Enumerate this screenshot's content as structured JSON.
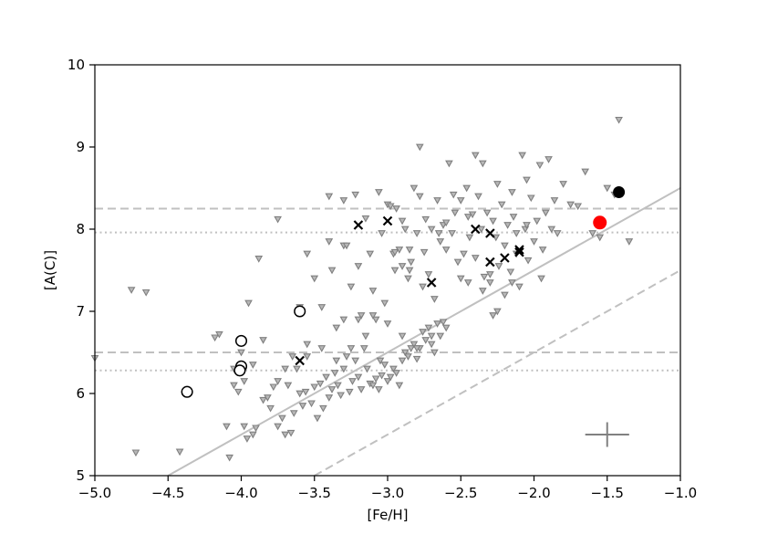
{
  "chart_data": {
    "type": "scatter",
    "xlabel": "[Fe/H]",
    "ylabel": "[A(C)]",
    "xlim": [
      -5.0,
      -1.0
    ],
    "ylim": [
      5,
      10
    ],
    "x_ticks": [
      "−5.0",
      "−4.5",
      "−4.0",
      "−3.5",
      "−3.0",
      "−2.5",
      "−2.0",
      "−1.5",
      "−1.0"
    ],
    "y_ticks": [
      "5",
      "6",
      "7",
      "8",
      "9",
      "10"
    ],
    "x_tick_values": [
      -5.0,
      -4.5,
      -4.0,
      -3.5,
      -3.0,
      -2.5,
      -2.0,
      -1.5,
      -1.0
    ],
    "y_tick_values": [
      5,
      6,
      7,
      8,
      9,
      10
    ],
    "grid": false,
    "colors": {
      "triangles": "#808080",
      "reference_lines": "#c0c0c0",
      "crosses": "#000000",
      "open_circles": "#000000",
      "filled_black": "#000000",
      "filled_red": "#ff0000",
      "error_bar": "#808080"
    },
    "reference_lines": [
      {
        "style": "dashed",
        "orientation": "horizontal",
        "y": 8.25
      },
      {
        "style": "dotted",
        "orientation": "horizontal",
        "y": 7.96
      },
      {
        "style": "dashed",
        "orientation": "horizontal",
        "y": 6.5
      },
      {
        "style": "dotted",
        "orientation": "horizontal",
        "y": 6.28
      },
      {
        "style": "solid",
        "orientation": "sloped",
        "points": [
          [
            -4.5,
            5.0
          ],
          [
            -1.0,
            8.5
          ]
        ]
      },
      {
        "style": "dashed",
        "orientation": "sloped",
        "points": [
          [
            -3.5,
            5.0
          ],
          [
            -1.0,
            7.5
          ]
        ]
      }
    ],
    "error_bar": {
      "x": -1.5,
      "y": 5.5,
      "x_err": 0.15,
      "y_err": 0.15
    },
    "series": [
      {
        "marker": "triangle-down",
        "values": [
          [
            -5.0,
            6.43
          ],
          [
            -4.75,
            7.26
          ],
          [
            -4.72,
            5.28
          ],
          [
            -4.65,
            7.23
          ],
          [
            -4.42,
            5.29
          ],
          [
            -4.38,
            6.02
          ],
          [
            -4.18,
            6.68
          ],
          [
            -4.15,
            6.72
          ],
          [
            -4.1,
            5.6
          ],
          [
            -4.08,
            5.22
          ],
          [
            -4.05,
            6.1
          ],
          [
            -4.02,
            6.02
          ],
          [
            -4.0,
            6.5
          ],
          [
            -3.98,
            5.6
          ],
          [
            -3.96,
            5.45
          ],
          [
            -3.95,
            7.1
          ],
          [
            -3.92,
            5.5
          ],
          [
            -3.9,
            5.58
          ],
          [
            -3.88,
            7.64
          ],
          [
            -3.85,
            5.92
          ],
          [
            -3.82,
            5.95
          ],
          [
            -3.8,
            5.82
          ],
          [
            -3.78,
            6.08
          ],
          [
            -3.75,
            5.6
          ],
          [
            -3.72,
            5.7
          ],
          [
            -3.7,
            5.5
          ],
          [
            -3.68,
            6.1
          ],
          [
            -3.66,
            5.52
          ],
          [
            -3.64,
            5.76
          ],
          [
            -3.62,
            6.3
          ],
          [
            -3.6,
            6.0
          ],
          [
            -3.58,
            5.85
          ],
          [
            -3.56,
            6.02
          ],
          [
            -3.55,
            6.45
          ],
          [
            -3.52,
            5.88
          ],
          [
            -3.5,
            6.08
          ],
          [
            -3.48,
            5.7
          ],
          [
            -3.46,
            6.12
          ],
          [
            -3.44,
            5.82
          ],
          [
            -3.42,
            6.2
          ],
          [
            -3.4,
            5.95
          ],
          [
            -3.38,
            6.05
          ],
          [
            -3.36,
            6.25
          ],
          [
            -3.34,
            6.1
          ],
          [
            -3.32,
            5.98
          ],
          [
            -3.3,
            6.3
          ],
          [
            -3.28,
            6.45
          ],
          [
            -3.26,
            6.02
          ],
          [
            -3.24,
            6.15
          ],
          [
            -3.22,
            6.4
          ],
          [
            -3.2,
            6.2
          ],
          [
            -3.18,
            6.05
          ],
          [
            -3.16,
            6.55
          ],
          [
            -3.14,
            6.3
          ],
          [
            -3.12,
            6.12
          ],
          [
            -3.1,
            6.1
          ],
          [
            -3.08,
            6.18
          ],
          [
            -3.06,
            6.05
          ],
          [
            -3.04,
            6.22
          ],
          [
            -3.02,
            6.35
          ],
          [
            -3.0,
            6.15
          ],
          [
            -2.98,
            6.2
          ],
          [
            -2.96,
            6.3
          ],
          [
            -2.94,
            6.25
          ],
          [
            -2.92,
            6.1
          ],
          [
            -2.9,
            6.4
          ],
          [
            -2.88,
            6.5
          ],
          [
            -2.86,
            6.45
          ],
          [
            -2.84,
            6.55
          ],
          [
            -2.82,
            6.6
          ],
          [
            -2.8,
            6.42
          ],
          [
            -2.78,
            6.55
          ],
          [
            -2.76,
            6.75
          ],
          [
            -2.74,
            6.65
          ],
          [
            -2.72,
            6.8
          ],
          [
            -2.7,
            6.6
          ],
          [
            -2.68,
            6.5
          ],
          [
            -2.66,
            6.85
          ],
          [
            -2.64,
            6.7
          ],
          [
            -2.62,
            6.87
          ],
          [
            -3.75,
            8.12
          ],
          [
            -3.6,
            7.05
          ],
          [
            -3.55,
            7.7
          ],
          [
            -3.5,
            7.4
          ],
          [
            -3.45,
            7.05
          ],
          [
            -3.4,
            7.85
          ],
          [
            -3.38,
            7.5
          ],
          [
            -3.35,
            6.8
          ],
          [
            -3.3,
            7.8
          ],
          [
            -3.28,
            7.8
          ],
          [
            -3.25,
            7.3
          ],
          [
            -3.22,
            8.42
          ],
          [
            -3.2,
            7.55
          ],
          [
            -3.18,
            6.95
          ],
          [
            -3.15,
            8.13
          ],
          [
            -3.12,
            7.7
          ],
          [
            -3.1,
            7.25
          ],
          [
            -3.08,
            6.9
          ],
          [
            -3.06,
            8.45
          ],
          [
            -3.04,
            7.95
          ],
          [
            -3.02,
            7.1
          ],
          [
            -3.0,
            8.3
          ],
          [
            -2.98,
            8.28
          ],
          [
            -2.96,
            7.7
          ],
          [
            -2.94,
            8.25
          ],
          [
            -2.92,
            7.75
          ],
          [
            -2.9,
            7.55
          ],
          [
            -2.88,
            8.0
          ],
          [
            -2.86,
            7.4
          ],
          [
            -2.84,
            7.6
          ],
          [
            -2.82,
            8.5
          ],
          [
            -2.8,
            7.95
          ],
          [
            -2.78,
            8.4
          ],
          [
            -2.76,
            7.3
          ],
          [
            -2.74,
            8.12
          ],
          [
            -2.72,
            7.45
          ],
          [
            -2.7,
            8.0
          ],
          [
            -2.68,
            7.15
          ],
          [
            -2.66,
            8.35
          ],
          [
            -2.64,
            7.85
          ],
          [
            -2.62,
            8.05
          ],
          [
            -2.6,
            7.75
          ],
          [
            -2.58,
            8.8
          ],
          [
            -2.56,
            7.95
          ],
          [
            -2.54,
            8.2
          ],
          [
            -2.52,
            7.6
          ],
          [
            -2.5,
            8.35
          ],
          [
            -2.48,
            7.7
          ],
          [
            -2.46,
            8.5
          ],
          [
            -2.44,
            7.9
          ],
          [
            -2.42,
            8.18
          ],
          [
            -2.4,
            7.65
          ],
          [
            -2.38,
            8.4
          ],
          [
            -2.36,
            8.0
          ],
          [
            -2.34,
            7.42
          ],
          [
            -2.32,
            8.2
          ],
          [
            -2.3,
            7.35
          ],
          [
            -2.28,
            8.1
          ],
          [
            -2.26,
            7.9
          ],
          [
            -2.24,
            7.55
          ],
          [
            -2.22,
            8.3
          ],
          [
            -2.2,
            7.8
          ],
          [
            -2.18,
            8.05
          ],
          [
            -2.16,
            7.48
          ],
          [
            -2.14,
            8.15
          ],
          [
            -2.12,
            7.7
          ],
          [
            -2.1,
            7.3
          ],
          [
            -2.08,
            8.9
          ],
          [
            -2.06,
            8.0
          ],
          [
            -2.04,
            7.62
          ],
          [
            -2.02,
            8.38
          ],
          [
            -2.0,
            7.85
          ],
          [
            -1.98,
            8.1
          ],
          [
            -1.96,
            8.78
          ],
          [
            -1.94,
            7.75
          ],
          [
            -1.92,
            8.2
          ],
          [
            -1.9,
            8.85
          ],
          [
            -1.88,
            8.0
          ],
          [
            -1.86,
            8.35
          ],
          [
            -1.84,
            7.95
          ],
          [
            -1.8,
            8.55
          ],
          [
            -1.75,
            8.3
          ],
          [
            -1.7,
            8.28
          ],
          [
            -1.65,
            8.7
          ],
          [
            -1.6,
            7.95
          ],
          [
            -1.55,
            7.9
          ],
          [
            -1.5,
            8.5
          ],
          [
            -1.45,
            8.42
          ],
          [
            -1.42,
            9.33
          ],
          [
            -1.35,
            7.85
          ],
          [
            -2.78,
            9.0
          ],
          [
            -2.35,
            8.8
          ],
          [
            -3.4,
            8.4
          ],
          [
            -3.3,
            8.35
          ],
          [
            -2.9,
            8.1
          ],
          [
            -2.6,
            8.08
          ],
          [
            -2.45,
            8.15
          ],
          [
            -2.55,
            8.42
          ],
          [
            -2.25,
            8.55
          ],
          [
            -2.4,
            8.9
          ],
          [
            -2.15,
            8.45
          ],
          [
            -2.05,
            8.6
          ],
          [
            -2.95,
            7.72
          ],
          [
            -2.85,
            7.5
          ],
          [
            -2.75,
            7.72
          ],
          [
            -2.65,
            7.95
          ],
          [
            -2.5,
            7.4
          ],
          [
            -2.45,
            7.35
          ],
          [
            -2.35,
            7.25
          ],
          [
            -2.3,
            7.45
          ],
          [
            -2.2,
            7.2
          ],
          [
            -2.25,
            7.0
          ],
          [
            -2.28,
            6.95
          ],
          [
            -2.15,
            7.35
          ],
          [
            -2.05,
            8.05
          ],
          [
            -2.12,
            7.95
          ],
          [
            -1.95,
            7.4
          ],
          [
            -2.6,
            6.8
          ],
          [
            -2.7,
            6.7
          ],
          [
            -2.8,
            6.55
          ],
          [
            -2.9,
            6.7
          ],
          [
            -3.05,
            6.4
          ],
          [
            -3.15,
            6.7
          ],
          [
            -3.25,
            6.55
          ],
          [
            -3.35,
            6.4
          ],
          [
            -3.45,
            6.55
          ],
          [
            -3.55,
            6.6
          ],
          [
            -3.65,
            6.45
          ],
          [
            -3.7,
            6.3
          ],
          [
            -3.75,
            6.15
          ],
          [
            -3.85,
            6.65
          ],
          [
            -3.98,
            6.15
          ],
          [
            -4.05,
            6.3
          ],
          [
            -3.92,
            6.35
          ],
          [
            -3.3,
            6.9
          ],
          [
            -3.2,
            6.9
          ],
          [
            -3.1,
            6.95
          ],
          [
            -3.0,
            6.85
          ],
          [
            -2.95,
            7.5
          ],
          [
            -2.85,
            7.75
          ]
        ]
      },
      {
        "marker": "cross",
        "values": [
          [
            -3.6,
            6.4
          ],
          [
            -3.2,
            8.05
          ],
          [
            -3.0,
            8.1
          ],
          [
            -2.7,
            7.35
          ],
          [
            -2.4,
            8.0
          ],
          [
            -2.3,
            7.95
          ],
          [
            -2.3,
            7.6
          ],
          [
            -2.2,
            7.65
          ],
          [
            -2.1,
            7.72
          ],
          [
            -2.1,
            7.75
          ]
        ]
      },
      {
        "marker": "open-circle",
        "values": [
          [
            -4.37,
            6.02
          ],
          [
            -4.0,
            6.64
          ],
          [
            -4.0,
            6.33
          ],
          [
            -4.01,
            6.28
          ],
          [
            -3.6,
            7.0
          ]
        ]
      },
      {
        "marker": "filled-circle-black",
        "values": [
          [
            -1.42,
            8.45
          ]
        ]
      },
      {
        "marker": "filled-circle-red",
        "values": [
          [
            -1.55,
            8.08
          ]
        ]
      }
    ]
  }
}
